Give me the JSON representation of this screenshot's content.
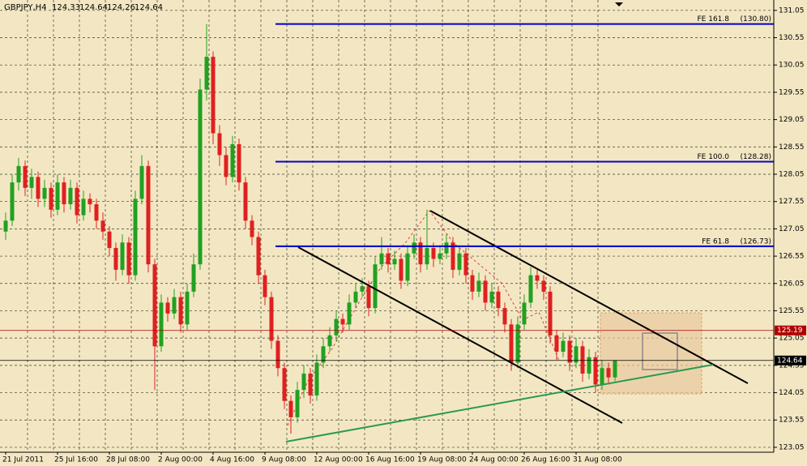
{
  "chart_data": {
    "type": "candlestick",
    "symbol": "GBPJPY,H4",
    "categories": [
      "21 Jul 2011",
      null,
      null,
      null,
      null,
      null,
      null,
      null,
      "25 Jul 16:00",
      null,
      null,
      null,
      null,
      null,
      null,
      null,
      "28 Jul 08:00",
      null,
      null,
      null,
      null,
      null,
      null,
      null,
      "2 Aug 00:00",
      null,
      null,
      null,
      null,
      null,
      null,
      null,
      "4 Aug 16:00",
      null,
      null,
      null,
      null,
      null,
      null,
      null,
      "9 Aug 08:00",
      null,
      null,
      null,
      null,
      null,
      null,
      null,
      "12 Aug 00:00",
      null,
      null,
      null,
      null,
      null,
      null,
      null,
      "16 Aug 16:00",
      null,
      null,
      null,
      null,
      null,
      null,
      null,
      "19 Aug 08:00",
      null,
      null,
      null,
      null,
      null,
      null,
      null,
      "24 Aug 00:00",
      null,
      null,
      null,
      null,
      null,
      null,
      null,
      "26 Aug 16:00",
      null,
      null,
      null,
      null,
      null,
      null,
      null,
      "31 Aug 08:00",
      null,
      null,
      null,
      null,
      null,
      null
    ],
    "ohlc": [
      [
        127.0,
        127.35,
        126.85,
        127.2
      ],
      [
        127.2,
        128.05,
        127.1,
        127.9
      ],
      [
        127.9,
        128.35,
        127.75,
        128.2
      ],
      [
        128.2,
        128.3,
        127.65,
        127.8
      ],
      [
        127.8,
        128.15,
        127.6,
        128.0
      ],
      [
        128.0,
        128.1,
        127.45,
        127.6
      ],
      [
        127.6,
        127.95,
        127.45,
        127.8
      ],
      [
        127.8,
        127.9,
        127.25,
        127.4
      ],
      [
        127.4,
        128.05,
        127.3,
        127.9
      ],
      [
        127.9,
        128.0,
        127.35,
        127.5
      ],
      [
        127.5,
        127.95,
        127.4,
        127.8
      ],
      [
        127.8,
        127.9,
        127.15,
        127.3
      ],
      [
        127.3,
        127.75,
        127.2,
        127.6
      ],
      [
        127.6,
        127.7,
        127.35,
        127.5
      ],
      [
        127.5,
        127.6,
        127.05,
        127.2
      ],
      [
        127.2,
        127.35,
        126.85,
        127.0
      ],
      [
        127.0,
        127.1,
        126.55,
        126.7
      ],
      [
        126.7,
        126.8,
        126.1,
        126.3
      ],
      [
        126.3,
        126.95,
        126.2,
        126.8
      ],
      [
        126.8,
        126.9,
        126.05,
        126.2
      ],
      [
        126.2,
        127.75,
        126.1,
        127.6
      ],
      [
        127.6,
        128.4,
        127.5,
        128.2
      ],
      [
        128.2,
        128.3,
        126.25,
        126.4
      ],
      [
        126.4,
        126.5,
        124.1,
        124.9
      ],
      [
        124.9,
        125.85,
        124.8,
        125.7
      ],
      [
        125.7,
        125.8,
        125.35,
        125.5
      ],
      [
        125.5,
        125.95,
        125.4,
        125.8
      ],
      [
        125.8,
        125.9,
        125.15,
        125.3
      ],
      [
        125.3,
        126.05,
        125.2,
        125.9
      ],
      [
        125.9,
        126.6,
        125.8,
        126.4
      ],
      [
        126.4,
        129.8,
        126.3,
        129.6
      ],
      [
        129.6,
        130.8,
        129.4,
        130.2
      ],
      [
        130.2,
        130.3,
        128.6,
        128.8
      ],
      [
        128.8,
        128.95,
        128.2,
        128.4
      ],
      [
        128.4,
        128.55,
        127.85,
        128.0
      ],
      [
        128.0,
        128.75,
        127.9,
        128.6
      ],
      [
        128.6,
        128.7,
        127.75,
        127.9
      ],
      [
        127.9,
        128.0,
        127.05,
        127.2
      ],
      [
        127.2,
        127.3,
        126.75,
        126.9
      ],
      [
        126.9,
        127.0,
        126.05,
        126.2
      ],
      [
        126.2,
        126.3,
        125.65,
        125.8
      ],
      [
        125.8,
        125.9,
        124.85,
        125.0
      ],
      [
        125.0,
        125.1,
        124.35,
        124.5
      ],
      [
        124.5,
        124.6,
        123.75,
        123.9
      ],
      [
        123.9,
        124.0,
        123.3,
        123.6
      ],
      [
        123.6,
        124.25,
        123.5,
        124.1
      ],
      [
        124.1,
        124.55,
        123.95,
        124.4
      ],
      [
        124.4,
        124.5,
        123.85,
        124.0
      ],
      [
        124.0,
        124.75,
        123.9,
        124.6
      ],
      [
        124.6,
        125.05,
        124.5,
        124.9
      ],
      [
        124.9,
        125.25,
        124.8,
        125.1
      ],
      [
        125.1,
        125.55,
        125.0,
        125.4
      ],
      [
        125.4,
        125.5,
        125.15,
        125.3
      ],
      [
        125.3,
        125.85,
        125.2,
        125.7
      ],
      [
        125.7,
        126.05,
        125.6,
        125.9
      ],
      [
        125.9,
        126.15,
        125.8,
        126.0
      ],
      [
        126.0,
        126.1,
        125.45,
        125.6
      ],
      [
        125.6,
        126.55,
        125.5,
        126.4
      ],
      [
        126.4,
        126.9,
        126.3,
        126.6
      ],
      [
        126.6,
        126.7,
        126.25,
        126.4
      ],
      [
        126.4,
        126.65,
        126.3,
        126.5
      ],
      [
        126.5,
        126.6,
        125.95,
        126.1
      ],
      [
        126.1,
        126.75,
        126.0,
        126.6
      ],
      [
        126.6,
        126.95,
        126.5,
        126.8
      ],
      [
        126.8,
        126.9,
        126.25,
        126.4
      ],
      [
        126.4,
        127.4,
        126.3,
        126.7
      ],
      [
        126.7,
        126.8,
        126.35,
        126.5
      ],
      [
        126.5,
        126.75,
        126.4,
        126.6
      ],
      [
        126.6,
        126.95,
        126.5,
        126.8
      ],
      [
        126.8,
        126.9,
        126.15,
        126.3
      ],
      [
        126.3,
        126.75,
        126.2,
        126.6
      ],
      [
        126.6,
        126.7,
        126.05,
        126.2
      ],
      [
        126.2,
        126.3,
        125.75,
        125.9
      ],
      [
        125.9,
        126.25,
        125.8,
        126.1
      ],
      [
        126.1,
        126.2,
        125.55,
        125.7
      ],
      [
        125.7,
        126.05,
        125.6,
        125.9
      ],
      [
        125.9,
        126.0,
        125.45,
        125.6
      ],
      [
        125.6,
        125.7,
        125.15,
        125.3
      ],
      [
        125.3,
        125.4,
        124.45,
        124.6
      ],
      [
        124.6,
        125.45,
        124.5,
        125.3
      ],
      [
        125.3,
        125.85,
        125.2,
        125.7
      ],
      [
        125.7,
        126.35,
        125.6,
        126.2
      ],
      [
        126.2,
        126.3,
        125.95,
        126.1
      ],
      [
        126.1,
        126.2,
        125.75,
        125.9
      ],
      [
        125.9,
        126.0,
        124.95,
        125.1
      ],
      [
        125.1,
        125.2,
        124.65,
        124.8
      ],
      [
        124.8,
        125.15,
        124.7,
        125.0
      ],
      [
        125.0,
        125.1,
        124.45,
        124.6
      ],
      [
        124.6,
        125.05,
        124.5,
        124.9
      ],
      [
        124.9,
        125.0,
        124.25,
        124.4
      ],
      [
        124.4,
        124.85,
        124.3,
        124.7
      ],
      [
        124.7,
        124.8,
        124.05,
        124.2
      ],
      [
        124.2,
        124.65,
        124.1,
        124.5
      ],
      [
        124.5,
        124.6,
        124.2,
        124.33
      ],
      [
        124.33,
        124.64,
        124.26,
        124.64
      ]
    ],
    "up_color": "#22a022",
    "down_color": "#e02020",
    "ylim": [
      122.96,
      131.24
    ],
    "yticks": [
      123.05,
      123.55,
      124.05,
      124.55,
      125.05,
      125.55,
      126.05,
      126.55,
      127.05,
      127.55,
      128.05,
      128.55,
      129.05,
      129.55,
      130.05,
      130.55,
      131.05
    ],
    "grid": true,
    "levels": [
      {
        "name": "FE 161.8",
        "price": {
          "value": 130.8,
          "label": "(130.80)"
        },
        "color": "#0000cc"
      },
      {
        "name": "FE 100.0",
        "price": {
          "value": 128.28,
          "label": "(128.28)"
        },
        "color": "#0000cc"
      },
      {
        "name": "FE 61.8",
        "price": {
          "value": 126.73,
          "label": "(126.73)"
        },
        "color": "#0000cc"
      }
    ],
    "price_tags": [
      {
        "value": 125.19,
        "color": "#b00000"
      },
      {
        "value": 124.64,
        "color": "#000000"
      }
    ]
  }
}
